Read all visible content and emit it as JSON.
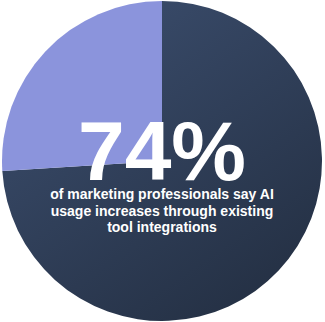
{
  "chart_data": {
    "type": "pie",
    "values": [
      74,
      26
    ],
    "value_labels": [
      "74%",
      null
    ],
    "data_labels": true,
    "colors": [
      "#2c3a52",
      "#8b94dc"
    ],
    "subtitle": "of marketing professionals say AI usage increases through existing tool integrations"
  }
}
